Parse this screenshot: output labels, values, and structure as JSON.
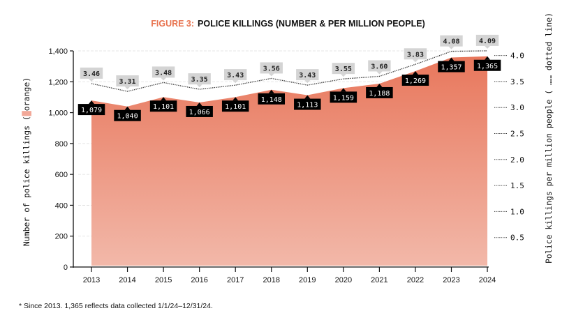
{
  "title": {
    "figure_label": "FIGURE 3:",
    "text": "POLICE KILLINGS (NUMBER & PER MILLION PEOPLE)"
  },
  "footnote": "* Since 2013. 1,365 reflects data collected 1/1/24–12/31/24.",
  "colors": {
    "accent": "#e8734f",
    "area_top": "#e8775c",
    "area_bottom": "#f2b8a9",
    "label_black": "#000000",
    "label_grey": "#d4d4d4"
  },
  "chart_data": {
    "type": "area",
    "title": "FIGURE 3: POLICE KILLINGS (NUMBER & PER MILLION PEOPLE)",
    "x": [
      2013,
      2014,
      2015,
      2016,
      2017,
      2018,
      2019,
      2020,
      2021,
      2022,
      2023,
      2024
    ],
    "x_tick_labels": [
      "2013",
      "2014",
      "2015",
      "2016",
      "2017",
      "2018",
      "2019",
      "2020",
      "2021",
      "2022",
      "2023",
      "2024"
    ],
    "series": [
      {
        "name": "Number of police killings",
        "style": "orange area",
        "axis": "left",
        "values": [
          1079,
          1040,
          1101,
          1066,
          1101,
          1148,
          1113,
          1159,
          1188,
          1269,
          1357,
          1365
        ],
        "labels": [
          "1,079",
          "1,040",
          "1,101",
          "1,066",
          "1,101",
          "1,148",
          "1,113",
          "1,159",
          "1,188",
          "1,269",
          "1,357",
          "1,365"
        ]
      },
      {
        "name": "Police killings per million people",
        "style": "dotted line",
        "axis": "right",
        "values": [
          3.46,
          3.31,
          3.48,
          3.35,
          3.43,
          3.56,
          3.43,
          3.55,
          3.6,
          3.83,
          4.08,
          4.09
        ],
        "labels": [
          "3.46",
          "3.31",
          "3.48",
          "3.35",
          "3.43",
          "3.56",
          "3.43",
          "3.55",
          "3.60",
          "3.83",
          "4.08",
          "4.09"
        ]
      }
    ],
    "left_axis": {
      "label_parts": [
        "Number of police killings (",
        "orange)"
      ],
      "ylim": [
        0,
        1400
      ],
      "ticks": [
        0,
        200,
        400,
        600,
        800,
        1000,
        1200,
        1400
      ],
      "tick_labels": [
        "0",
        "200",
        "400",
        "600",
        "800",
        "1,000",
        "1,200",
        "1,400"
      ]
    },
    "right_axis": {
      "label": "Police killings per million people ( …… dotted line)",
      "ylim": [
        0,
        4.3
      ],
      "ticks": [
        0.5,
        1.0,
        1.5,
        2.0,
        2.5,
        3.0,
        3.5,
        4.0
      ],
      "tick_labels": [
        "0.5",
        "1.0",
        "1.5",
        "2.0",
        "2.5",
        "3.0",
        "3.5",
        "4.0"
      ]
    },
    "grid": true,
    "legend": "axis labels"
  }
}
